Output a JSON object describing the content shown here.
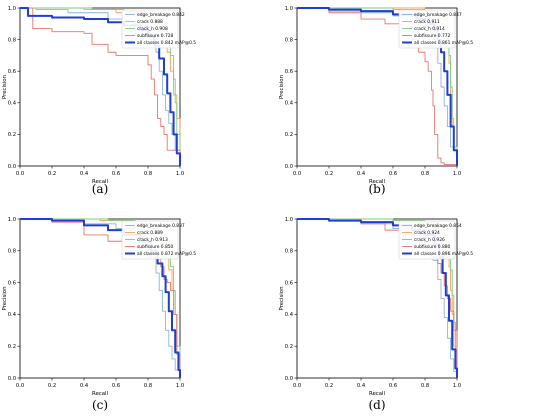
{
  "chart_data": [
    {
      "type": "line",
      "caption": "(a)",
      "xlabel": "Recall",
      "ylabel": "Precision",
      "xlim": [
        0,
        1
      ],
      "ylim": [
        0,
        1
      ],
      "xticks": [
        "0.0",
        "0.2",
        "0.4",
        "0.6",
        "0.8",
        "1.0"
      ],
      "yticks": [
        "0.0",
        "0.2",
        "0.4",
        "0.6",
        "0.8",
        "1.0"
      ],
      "legend_position": "top-right",
      "series": [
        {
          "name": "edge_breakage 0.842",
          "color": "#8ab4d8",
          "width": 0.9,
          "x": [
            0.0,
            0.1,
            0.3,
            0.55,
            0.7,
            0.78,
            0.82,
            0.85,
            0.87,
            0.89,
            0.91,
            0.93,
            0.95,
            0.97,
            1.0
          ],
          "y": [
            1.0,
            0.99,
            0.97,
            0.93,
            0.9,
            0.86,
            0.8,
            0.72,
            0.6,
            0.45,
            0.35,
            0.27,
            0.2,
            0.1,
            0.0
          ]
        },
        {
          "name": "crack 0.888",
          "color": "#f5a35a",
          "width": 0.9,
          "x": [
            0.0,
            0.2,
            0.4,
            0.6,
            0.75,
            0.82,
            0.86,
            0.9,
            0.92,
            0.94,
            0.96,
            0.98,
            1.0
          ],
          "y": [
            1.0,
            1.0,
            0.99,
            0.97,
            0.95,
            0.92,
            0.88,
            0.82,
            0.72,
            0.6,
            0.45,
            0.3,
            0.0
          ]
        },
        {
          "name": "crack_h 0.908",
          "color": "#7fc97f",
          "width": 0.9,
          "x": [
            0.0,
            0.2,
            0.45,
            0.65,
            0.8,
            0.86,
            0.9,
            0.92,
            0.94,
            0.96,
            0.97,
            0.98,
            1.0
          ],
          "y": [
            1.0,
            1.0,
            0.99,
            0.98,
            0.96,
            0.93,
            0.88,
            0.8,
            0.7,
            0.55,
            0.4,
            0.2,
            0.0
          ]
        },
        {
          "name": "subfissure 0.728",
          "color": "#e8756e",
          "width": 0.9,
          "x": [
            0.0,
            0.08,
            0.2,
            0.4,
            0.45,
            0.55,
            0.6,
            0.7,
            0.8,
            0.82,
            0.84,
            0.86,
            0.88,
            0.9,
            0.92,
            1.0
          ],
          "y": [
            1.0,
            0.87,
            0.85,
            0.84,
            0.77,
            0.72,
            0.7,
            0.7,
            0.64,
            0.55,
            0.45,
            0.3,
            0.25,
            0.2,
            0.1,
            0.0
          ]
        },
        {
          "name": "all classes 0.842 mAP@0.5",
          "color": "#1f3fd1",
          "width": 2.0,
          "x": [
            0.0,
            0.05,
            0.2,
            0.4,
            0.55,
            0.65,
            0.75,
            0.8,
            0.84,
            0.87,
            0.9,
            0.92,
            0.94,
            0.96,
            0.98,
            1.0
          ],
          "y": [
            1.0,
            0.95,
            0.94,
            0.93,
            0.91,
            0.89,
            0.86,
            0.82,
            0.76,
            0.68,
            0.58,
            0.46,
            0.34,
            0.2,
            0.08,
            0.0
          ]
        }
      ]
    },
    {
      "type": "line",
      "caption": "(b)",
      "xlabel": "Recall",
      "ylabel": "Precision",
      "xlim": [
        0,
        1
      ],
      "ylim": [
        0,
        1
      ],
      "xticks": [
        "0.0",
        "0.2",
        "0.4",
        "0.6",
        "0.8",
        "1.0"
      ],
      "yticks": [
        "0.0",
        "0.2",
        "0.4",
        "0.6",
        "0.8",
        "1.0"
      ],
      "legend_position": "top-right",
      "series": [
        {
          "name": "edge_breakage 0.847",
          "color": "#8ab4d8",
          "width": 0.9,
          "x": [
            0.0,
            0.2,
            0.4,
            0.6,
            0.75,
            0.82,
            0.86,
            0.88,
            0.9,
            0.92,
            0.94,
            0.96,
            1.0
          ],
          "y": [
            1.0,
            0.98,
            0.97,
            0.95,
            0.93,
            0.88,
            0.78,
            0.65,
            0.5,
            0.38,
            0.25,
            0.12,
            0.0
          ]
        },
        {
          "name": "crack 0.911",
          "color": "#f5a35a",
          "width": 0.9,
          "x": [
            0.0,
            0.3,
            0.6,
            0.8,
            0.88,
            0.92,
            0.94,
            0.95,
            0.96,
            0.97,
            0.98,
            1.0
          ],
          "y": [
            1.0,
            1.0,
            1.0,
            0.98,
            0.95,
            0.9,
            0.8,
            0.65,
            0.45,
            0.25,
            0.1,
            0.0
          ]
        },
        {
          "name": "crack_h 0.914",
          "color": "#7fc97f",
          "width": 0.9,
          "x": [
            0.0,
            0.3,
            0.6,
            0.8,
            0.88,
            0.92,
            0.94,
            0.95,
            0.96,
            0.97,
            0.98,
            1.0
          ],
          "y": [
            1.0,
            1.0,
            0.99,
            0.98,
            0.96,
            0.92,
            0.85,
            0.7,
            0.5,
            0.3,
            0.12,
            0.0
          ]
        },
        {
          "name": "subfissure 0.772",
          "color": "#e8756e",
          "width": 0.9,
          "x": [
            0.0,
            0.2,
            0.4,
            0.55,
            0.65,
            0.72,
            0.76,
            0.8,
            0.82,
            0.84,
            0.85,
            0.86,
            0.88,
            0.9,
            0.92,
            1.0
          ],
          "y": [
            1.0,
            0.97,
            0.93,
            0.9,
            0.85,
            0.8,
            0.72,
            0.66,
            0.6,
            0.48,
            0.38,
            0.2,
            0.05,
            0.02,
            0.01,
            0.0
          ]
        },
        {
          "name": "all classes 0.861 mAP@0.5",
          "color": "#1f3fd1",
          "width": 2.0,
          "x": [
            0.0,
            0.2,
            0.4,
            0.6,
            0.75,
            0.82,
            0.86,
            0.88,
            0.9,
            0.92,
            0.94,
            0.96,
            0.98,
            1.0
          ],
          "y": [
            1.0,
            0.99,
            0.98,
            0.96,
            0.93,
            0.9,
            0.86,
            0.8,
            0.72,
            0.6,
            0.45,
            0.25,
            0.1,
            0.0
          ]
        }
      ]
    },
    {
      "type": "line",
      "caption": "(c)",
      "xlabel": "Recall",
      "ylabel": "Precision",
      "xlim": [
        0,
        1
      ],
      "ylim": [
        0,
        1
      ],
      "xticks": [
        "0.0",
        "0.2",
        "0.4",
        "0.6",
        "0.8",
        "1.0"
      ],
      "yticks": [
        "0.0",
        "0.2",
        "0.4",
        "0.6",
        "0.8",
        "1.0"
      ],
      "legend_position": "top-right",
      "series": [
        {
          "name": "edge_breakage 0.837",
          "color": "#8ab4d8",
          "width": 0.9,
          "x": [
            0.0,
            0.2,
            0.4,
            0.6,
            0.72,
            0.78,
            0.82,
            0.85,
            0.87,
            0.89,
            0.91,
            0.93,
            0.95,
            0.97,
            1.0
          ],
          "y": [
            1.0,
            0.99,
            0.97,
            0.94,
            0.9,
            0.84,
            0.76,
            0.66,
            0.55,
            0.42,
            0.3,
            0.2,
            0.12,
            0.05,
            0.0
          ]
        },
        {
          "name": "crack 0.889",
          "color": "#f5a35a",
          "width": 0.9,
          "x": [
            0.0,
            0.25,
            0.5,
            0.7,
            0.8,
            0.86,
            0.9,
            0.93,
            0.95,
            0.97,
            0.98,
            1.0
          ],
          "y": [
            1.0,
            1.0,
            0.99,
            0.97,
            0.94,
            0.9,
            0.8,
            0.68,
            0.55,
            0.4,
            0.2,
            0.0
          ]
        },
        {
          "name": "crack_h 0.913",
          "color": "#7fc97f",
          "width": 0.9,
          "x": [
            0.0,
            0.3,
            0.55,
            0.72,
            0.82,
            0.88,
            0.92,
            0.94,
            0.96,
            0.97,
            0.98,
            1.0
          ],
          "y": [
            1.0,
            1.0,
            0.99,
            0.97,
            0.95,
            0.9,
            0.82,
            0.7,
            0.55,
            0.4,
            0.2,
            0.0
          ]
        },
        {
          "name": "subfissure 0.850",
          "color": "#e8756e",
          "width": 0.9,
          "x": [
            0.0,
            0.2,
            0.4,
            0.55,
            0.65,
            0.75,
            0.8,
            0.85,
            0.88,
            0.9,
            0.92,
            0.94,
            0.96,
            0.98,
            1.0
          ],
          "y": [
            1.0,
            0.98,
            0.9,
            0.86,
            0.82,
            0.78,
            0.76,
            0.75,
            0.7,
            0.62,
            0.6,
            0.55,
            0.4,
            0.15,
            0.0
          ]
        },
        {
          "name": "all classes 0.872 mAP@0.5",
          "color": "#1f3fd1",
          "width": 2.0,
          "x": [
            0.0,
            0.2,
            0.4,
            0.55,
            0.65,
            0.75,
            0.82,
            0.86,
            0.89,
            0.91,
            0.93,
            0.95,
            0.97,
            0.99,
            1.0
          ],
          "y": [
            1.0,
            0.99,
            0.96,
            0.93,
            0.9,
            0.86,
            0.8,
            0.72,
            0.64,
            0.54,
            0.42,
            0.3,
            0.16,
            0.05,
            0.0
          ]
        }
      ]
    },
    {
      "type": "line",
      "caption": "(d)",
      "xlabel": "Recall",
      "ylabel": "Precision",
      "xlim": [
        0,
        1
      ],
      "ylim": [
        0,
        1
      ],
      "xticks": [
        "0.0",
        "0.2",
        "0.4",
        "0.6",
        "0.8",
        "1.0"
      ],
      "yticks": [
        "0.0",
        "0.2",
        "0.4",
        "0.6",
        "0.8",
        "1.0"
      ],
      "legend_position": "top-right",
      "series": [
        {
          "name": "edge_breakage 0.854",
          "color": "#8ab4d8",
          "width": 0.9,
          "x": [
            0.0,
            0.2,
            0.4,
            0.6,
            0.72,
            0.8,
            0.85,
            0.88,
            0.9,
            0.92,
            0.94,
            0.96,
            0.98,
            1.0
          ],
          "y": [
            1.0,
            0.99,
            0.97,
            0.94,
            0.9,
            0.84,
            0.74,
            0.62,
            0.5,
            0.38,
            0.25,
            0.12,
            0.04,
            0.0
          ]
        },
        {
          "name": "crack 0.924",
          "color": "#f5a35a",
          "width": 0.9,
          "x": [
            0.0,
            0.3,
            0.6,
            0.78,
            0.86,
            0.9,
            0.93,
            0.95,
            0.96,
            0.97,
            0.98,
            1.0
          ],
          "y": [
            1.0,
            1.0,
            0.99,
            0.97,
            0.94,
            0.9,
            0.82,
            0.7,
            0.55,
            0.4,
            0.2,
            0.0
          ]
        },
        {
          "name": "crack_h 0.926",
          "color": "#7fc97f",
          "width": 0.9,
          "x": [
            0.0,
            0.3,
            0.6,
            0.8,
            0.88,
            0.92,
            0.94,
            0.96,
            0.97,
            0.98,
            0.99,
            1.0
          ],
          "y": [
            1.0,
            1.0,
            0.99,
            0.98,
            0.95,
            0.9,
            0.82,
            0.68,
            0.52,
            0.35,
            0.15,
            0.0
          ]
        },
        {
          "name": "subfissure 0.880",
          "color": "#e8756e",
          "width": 0.9,
          "x": [
            0.0,
            0.2,
            0.4,
            0.55,
            0.68,
            0.78,
            0.84,
            0.88,
            0.9,
            0.92,
            0.94,
            0.96,
            0.98,
            1.0
          ],
          "y": [
            1.0,
            0.99,
            0.97,
            0.93,
            0.88,
            0.82,
            0.76,
            0.72,
            0.66,
            0.58,
            0.5,
            0.42,
            0.3,
            0.0
          ]
        },
        {
          "name": "all classes 0.896 mAP@0.5",
          "color": "#1f3fd1",
          "width": 2.0,
          "x": [
            0.0,
            0.2,
            0.4,
            0.6,
            0.72,
            0.8,
            0.86,
            0.89,
            0.91,
            0.93,
            0.95,
            0.97,
            0.99,
            1.0
          ],
          "y": [
            1.0,
            0.99,
            0.98,
            0.96,
            0.93,
            0.9,
            0.84,
            0.76,
            0.66,
            0.52,
            0.36,
            0.18,
            0.06,
            0.0
          ]
        }
      ]
    }
  ]
}
